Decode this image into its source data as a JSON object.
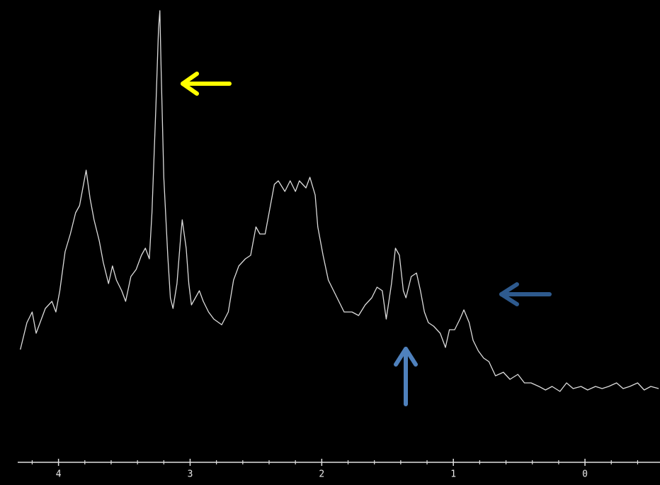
{
  "chart_data": {
    "type": "line",
    "x": [
      4.29,
      4.24,
      4.2,
      4.17,
      4.13,
      4.1,
      4.05,
      4.02,
      3.99,
      3.95,
      3.91,
      3.87,
      3.84,
      3.81,
      3.79,
      3.76,
      3.73,
      3.69,
      3.66,
      3.62,
      3.59,
      3.56,
      3.52,
      3.49,
      3.45,
      3.41,
      3.37,
      3.34,
      3.31,
      3.29,
      3.26,
      3.24,
      3.23,
      3.22,
      3.2,
      3.17,
      3.15,
      3.13,
      3.1,
      3.07,
      3.06,
      3.03,
      3.01,
      2.99,
      2.96,
      2.93,
      2.9,
      2.86,
      2.82,
      2.76,
      2.71,
      2.67,
      2.63,
      2.58,
      2.54,
      2.5,
      2.47,
      2.43,
      2.4,
      2.36,
      2.33,
      2.28,
      2.24,
      2.2,
      2.17,
      2.12,
      2.09,
      2.05,
      2.03,
      1.99,
      1.95,
      1.91,
      1.87,
      1.83,
      1.77,
      1.72,
      1.67,
      1.62,
      1.58,
      1.54,
      1.51,
      1.47,
      1.44,
      1.41,
      1.38,
      1.36,
      1.32,
      1.28,
      1.25,
      1.22,
      1.19,
      1.15,
      1.1,
      1.06,
      1.03,
      0.99,
      0.95,
      0.92,
      0.88,
      0.85,
      0.81,
      0.77,
      0.73,
      0.68,
      0.62,
      0.57,
      0.51,
      0.46,
      0.41,
      0.35,
      0.3,
      0.25,
      0.19,
      0.14,
      0.09,
      0.03,
      -0.02,
      -0.08,
      -0.13,
      -0.18,
      -0.24,
      -0.29,
      -0.34,
      -0.4,
      -0.45,
      -0.5,
      -0.56
    ],
    "series": [
      {
        "color": "#dcdcdc",
        "values": [
          147,
          185,
          200,
          170,
          190,
          205,
          215,
          200,
          230,
          285,
          310,
          340,
          350,
          380,
          400,
          360,
          330,
          300,
          270,
          240,
          265,
          245,
          230,
          215,
          250,
          260,
          280,
          290,
          275,
          340,
          490,
          600,
          625,
          540,
          390,
          280,
          220,
          205,
          240,
          310,
          330,
          290,
          240,
          210,
          220,
          230,
          215,
          200,
          190,
          182,
          200,
          245,
          265,
          275,
          280,
          320,
          310,
          310,
          340,
          380,
          385,
          370,
          385,
          370,
          385,
          375,
          390,
          365,
          320,
          280,
          245,
          230,
          215,
          200,
          200,
          195,
          210,
          220,
          235,
          230,
          190,
          240,
          290,
          280,
          230,
          220,
          250,
          255,
          230,
          200,
          185,
          180,
          170,
          150,
          175,
          175,
          190,
          203,
          185,
          160,
          145,
          135,
          130,
          110,
          115,
          105,
          112,
          100,
          100,
          95,
          90,
          95,
          88,
          100,
          92,
          95,
          90,
          95,
          92,
          95,
          100,
          92,
          95,
          100,
          90,
          95,
          92
        ]
      }
    ],
    "xlim": [
      4.31,
      -0.57
    ],
    "ylim": [
      0,
      640
    ],
    "xticks": [
      4,
      3,
      2,
      1,
      0
    ],
    "xminorticks": [
      4.2,
      3.8,
      3.6,
      3.4,
      3.2,
      2.8,
      2.6,
      2.4,
      2.2,
      1.8,
      1.6,
      1.4,
      1.2,
      0.8,
      0.6,
      0.4,
      0.2,
      -0.2,
      -0.4
    ]
  }
}
